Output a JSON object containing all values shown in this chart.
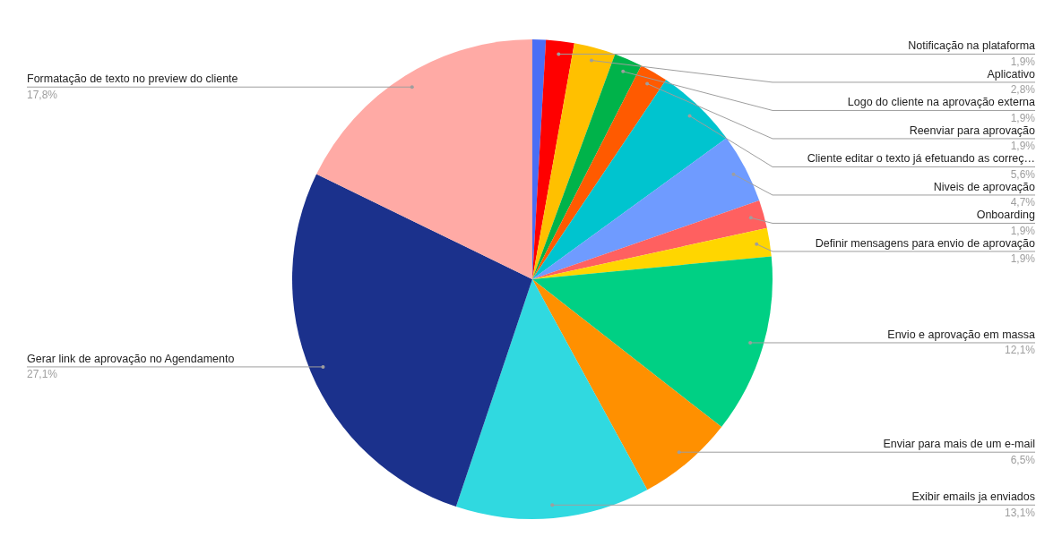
{
  "chart_data": {
    "type": "pie",
    "categories": [
      null,
      "Notificação na plataforma",
      "Aplicativo",
      "Logo do cliente na aprovação externa",
      "Reenviar para aprovação",
      "Cliente editar o texto já efetuando as correç…",
      "Niveis de aprovação",
      "Onboarding",
      "Definir mensagens para envio de aprovação",
      "Envio e aprovação em massa",
      "Enviar para mais de um e-mail",
      "Exibir emails ja enviados",
      "Gerar link de aprovação no Agendamento",
      "Formatação de texto no preview do cliente"
    ],
    "values": [
      0.9,
      1.9,
      2.8,
      1.9,
      1.9,
      5.6,
      4.7,
      1.9,
      1.9,
      12.1,
      6.5,
      13.1,
      27.1,
      17.8
    ],
    "colors": [
      "#4a6ef5",
      "#ff0000",
      "#ffc000",
      "#00b34a",
      "#ff5a00",
      "#00c4cf",
      "#6f9bff",
      "#ff6060",
      "#ffd600",
      "#00d084",
      "#ff9000",
      "#30d9e0",
      "#1b318c",
      "#ffaaa5"
    ],
    "value_labels": [
      null,
      "1,9%",
      "2,8%",
      "1,9%",
      "1,9%",
      "5,6%",
      "4,7%",
      "1,9%",
      "1,9%",
      "12,1%",
      "6,5%",
      "13,1%",
      "27,1%",
      "17,8%"
    ]
  }
}
